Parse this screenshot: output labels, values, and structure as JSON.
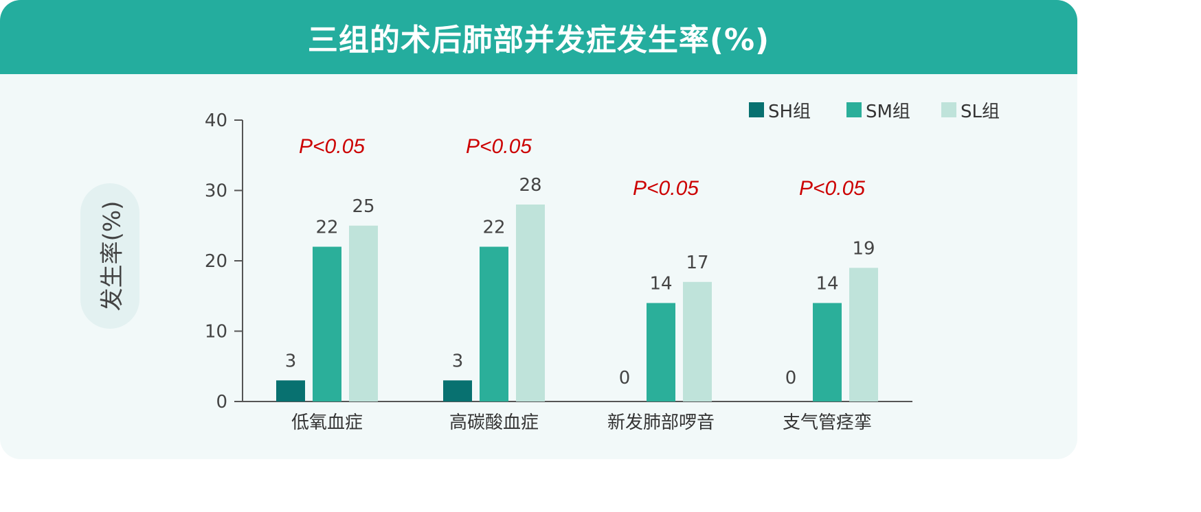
{
  "header": {
    "title": "三组的术后肺部并发症发生率(%)"
  },
  "colors": {
    "header_bg": "#24ad9e",
    "sh": "#087170",
    "sm": "#2baf9a",
    "sl": "#bfe3da",
    "pvalue": "#cc0000"
  },
  "chart_data": {
    "type": "bar",
    "title": "三组的术后肺部并发症发生率(%)",
    "ylabel": "发生率(%)",
    "xlabel": "",
    "ylim": [
      0,
      40
    ],
    "yticks": [
      0,
      10,
      20,
      30,
      40
    ],
    "categories": [
      "低氧血症",
      "高碳酸血症",
      "新发肺部啰音",
      "支气管痉挛"
    ],
    "series": [
      {
        "name": "SH组",
        "color": "#087170",
        "values": [
          3,
          3,
          0,
          0
        ]
      },
      {
        "name": "SM组",
        "color": "#2baf9a",
        "values": [
          22,
          22,
          14,
          14
        ]
      },
      {
        "name": "SL组",
        "color": "#bfe3da",
        "values": [
          25,
          28,
          17,
          19
        ]
      }
    ],
    "annotations": [
      "P<0.05",
      "P<0.05",
      "P<0.05",
      "P<0.05"
    ],
    "legend_position": "top-right",
    "grid": false
  }
}
